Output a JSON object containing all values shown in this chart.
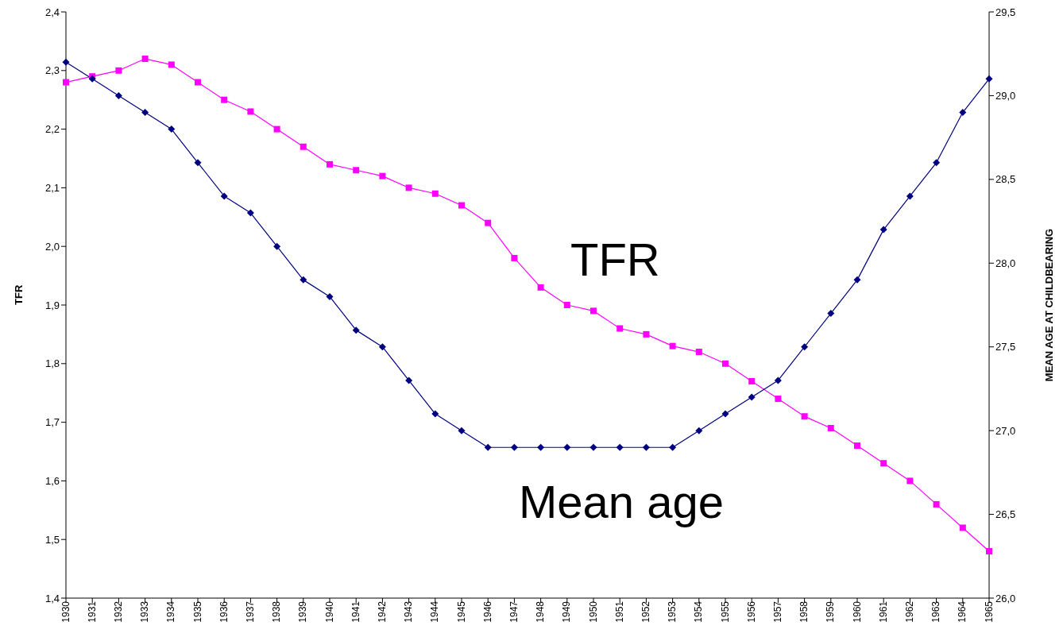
{
  "chart_data": {
    "type": "line",
    "ylabel": "TFR",
    "y2label": "MEAN AGE AT CHILDBEARING",
    "categories": [
      "1930",
      "1931",
      "1932",
      "1933",
      "1934",
      "1935",
      "1936",
      "1937",
      "1938",
      "1939",
      "1940",
      "1941",
      "1942",
      "1943",
      "1944",
      "1945",
      "1946",
      "1947",
      "1948",
      "1949",
      "1950",
      "1951",
      "1952",
      "1953",
      "1954",
      "1955",
      "1956",
      "1957",
      "1958",
      "1959",
      "1960",
      "1961",
      "1962",
      "1963",
      "1964",
      "1965"
    ],
    "series": [
      {
        "name": "TFR",
        "color": "#ff00ff",
        "marker": "square",
        "values": [
          2.28,
          2.29,
          2.3,
          2.32,
          2.31,
          2.28,
          2.25,
          2.23,
          2.2,
          2.17,
          2.14,
          2.13,
          2.12,
          2.1,
          2.09,
          2.07,
          2.04,
          1.98,
          1.93,
          1.9,
          1.89,
          1.86,
          1.85,
          1.83,
          1.82,
          1.8,
          1.77,
          1.74,
          1.71,
          1.69,
          1.66,
          1.63,
          1.6,
          1.56,
          1.52,
          1.48
        ]
      },
      {
        "name": "Mean age",
        "color": "#000080",
        "marker": "diamond",
        "axis": "y2",
        "values": [
          29.2,
          29.1,
          29.0,
          28.9,
          28.8,
          28.6,
          28.4,
          28.3,
          28.1,
          27.9,
          27.8,
          27.6,
          27.5,
          27.3,
          27.1,
          27.0,
          26.9,
          26.9,
          26.9,
          26.9,
          26.9,
          26.9,
          26.9,
          26.9,
          27.0,
          27.1,
          27.2,
          27.3,
          27.5,
          27.7,
          27.9,
          28.2,
          28.4,
          28.6,
          28.9,
          29.1
        ]
      }
    ],
    "ylim": [
      1.4,
      2.4
    ],
    "yticks": [
      {
        "value": 1.4,
        "label": "1,4"
      },
      {
        "value": 1.5,
        "label": "1,5"
      },
      {
        "value": 1.6,
        "label": "1,6"
      },
      {
        "value": 1.7,
        "label": "1,7"
      },
      {
        "value": 1.8,
        "label": "1,8"
      },
      {
        "value": 1.9,
        "label": "1,9"
      },
      {
        "value": 2.0,
        "label": "2,0"
      },
      {
        "value": 2.1,
        "label": "2,1"
      },
      {
        "value": 2.2,
        "label": "2,2"
      },
      {
        "value": 2.3,
        "label": "2,3"
      },
      {
        "value": 2.4,
        "label": "2,4"
      }
    ],
    "y2lim": [
      26.0,
      29.5
    ],
    "y2ticks": [
      {
        "value": 26.0,
        "label": "26,0"
      },
      {
        "value": 26.5,
        "label": "26,5"
      },
      {
        "value": 27.0,
        "label": "27,0"
      },
      {
        "value": 27.5,
        "label": "27,5"
      },
      {
        "value": 28.0,
        "label": "28,0"
      },
      {
        "value": 28.5,
        "label": "28,5"
      },
      {
        "value": 29.0,
        "label": "29,0"
      },
      {
        "value": 29.5,
        "label": "29,5"
      }
    ],
    "grid": false,
    "legend": false,
    "line_style": "solid"
  }
}
